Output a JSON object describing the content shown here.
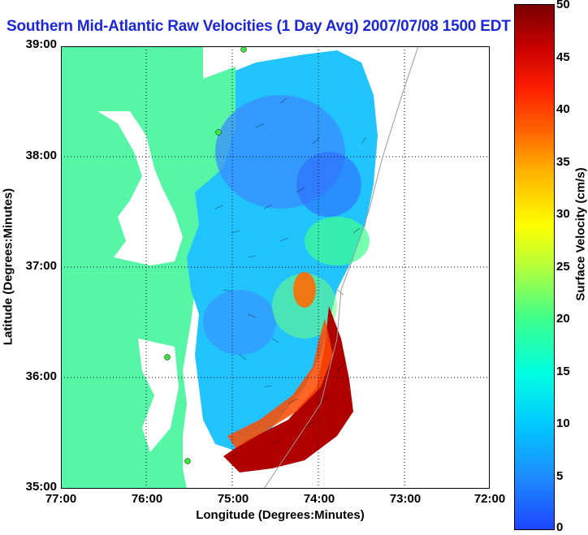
{
  "title": "Southern Mid-Atlantic Raw Velocities (1 Day Avg) 2007/07/08 1500 EDT",
  "map": {
    "xlabel": "Longitude (Degrees:Minutes)",
    "ylabel": "Latitude (Degrees:Minutes)",
    "x_ticks": [
      "77:00",
      "76:00",
      "75:00",
      "74:00",
      "73:00",
      "72:00"
    ],
    "y_ticks": [
      "39:00",
      "38:00",
      "37:00",
      "36:00",
      "35:00"
    ],
    "grid": "dotted"
  },
  "colorbar": {
    "label": "Surface Velocity (cm/s)",
    "ticks": [
      "50",
      "45",
      "40",
      "35",
      "30",
      "25",
      "20",
      "15",
      "10",
      "5",
      "0"
    ],
    "range": [
      0,
      50
    ]
  },
  "colors": {
    "land": "#57f5a6",
    "title": "#1c28d8",
    "sites": "#3ce63c"
  }
}
